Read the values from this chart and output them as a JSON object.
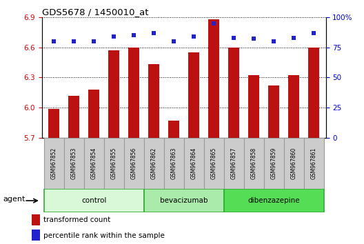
{
  "title": "GDS5678 / 1450010_at",
  "samples": [
    "GSM967852",
    "GSM967853",
    "GSM967854",
    "GSM967855",
    "GSM967856",
    "GSM967862",
    "GSM967863",
    "GSM967864",
    "GSM967865",
    "GSM967857",
    "GSM967858",
    "GSM967859",
    "GSM967860",
    "GSM967861"
  ],
  "bar_values": [
    5.99,
    6.12,
    6.18,
    6.57,
    6.6,
    6.43,
    5.87,
    6.55,
    6.88,
    6.6,
    6.32,
    6.22,
    6.32,
    6.6
  ],
  "percentile_values": [
    80,
    80,
    80,
    84,
    85,
    87,
    80,
    84,
    95,
    83,
    82,
    80,
    83,
    87
  ],
  "bar_color": "#bb1111",
  "percentile_color": "#2222cc",
  "ymin": 5.7,
  "ymax": 6.9,
  "y_ticks": [
    5.7,
    6.0,
    6.3,
    6.6,
    6.9
  ],
  "y2min": 0,
  "y2max": 100,
  "y2_ticks": [
    0,
    25,
    50,
    75,
    100
  ],
  "y2_labels": [
    "0",
    "25",
    "50",
    "75",
    "100%"
  ],
  "groups": [
    {
      "label": "control",
      "start": 0,
      "end": 5,
      "color": "#d8f8d8"
    },
    {
      "label": "bevacizumab",
      "start": 5,
      "end": 9,
      "color": "#aaeaaa"
    },
    {
      "label": "dibenzazepine",
      "start": 9,
      "end": 14,
      "color": "#55dd55"
    }
  ],
  "agent_label": "agent",
  "legend1_label": "transformed count",
  "legend2_label": "percentile rank within the sample",
  "tick_color_left": "#cc0000",
  "tick_color_right": "#0000cc",
  "background_color": "#ffffff",
  "plot_bg_color": "#ffffff",
  "sample_box_color": "#cccccc",
  "sample_box_edge": "#999999"
}
